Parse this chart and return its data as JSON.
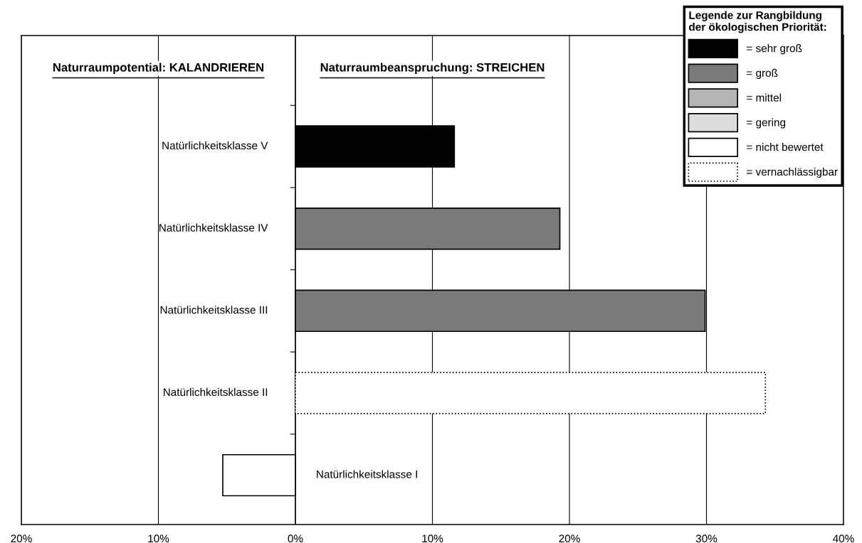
{
  "chart_data": {
    "type": "bar",
    "orientation": "horizontal",
    "categories": [
      "Natürlichkeitsklasse V",
      "Natürlichkeitsklasse IV",
      "Natürlichkeitsklasse III",
      "Natürlichkeitsklasse II",
      "Natürlichkeitsklasse I"
    ],
    "series": [
      {
        "name": "= sehr groß",
        "color": "#000000",
        "values": [
          11.6,
          null,
          null,
          null,
          null
        ]
      },
      {
        "name": "= groß",
        "color": "#7a7a7a",
        "values": [
          null,
          19.3,
          29.9,
          null,
          null
        ]
      },
      {
        "name": "= mittel",
        "color": "#b4b4b4",
        "values": [
          null,
          null,
          null,
          null,
          null
        ]
      },
      {
        "name": "= gering",
        "color": "#dcdcdc",
        "values": [
          null,
          null,
          null,
          null,
          null
        ]
      },
      {
        "name": "= nicht bewertet",
        "color": "#ffffff",
        "values": [
          null,
          null,
          null,
          null,
          -5.3
        ]
      },
      {
        "name": "= vernachlässigbar",
        "color": "#ffffff",
        "line_style": "dotted",
        "values": [
          null,
          null,
          null,
          34.3,
          null
        ]
      }
    ],
    "legend_title": "Legende zur Rangbildung\nder ökologischen Priorität:",
    "legend": "top right",
    "xlim": [
      -20,
      40
    ],
    "xticks": [
      {
        "value": -20,
        "label": "20%"
      },
      {
        "value": -10,
        "label": "10%"
      },
      {
        "value": 0,
        "label": "0%"
      },
      {
        "value": 10,
        "label": "10%"
      },
      {
        "value": 20,
        "label": "20%"
      },
      {
        "value": 30,
        "label": "30%"
      },
      {
        "value": 40,
        "label": "40%"
      }
    ],
    "grid": "x",
    "annotations": [
      "Naturraumpotential: KALANDRIEREN",
      "Naturraumbeanspruchung: STREICHEN"
    ]
  }
}
